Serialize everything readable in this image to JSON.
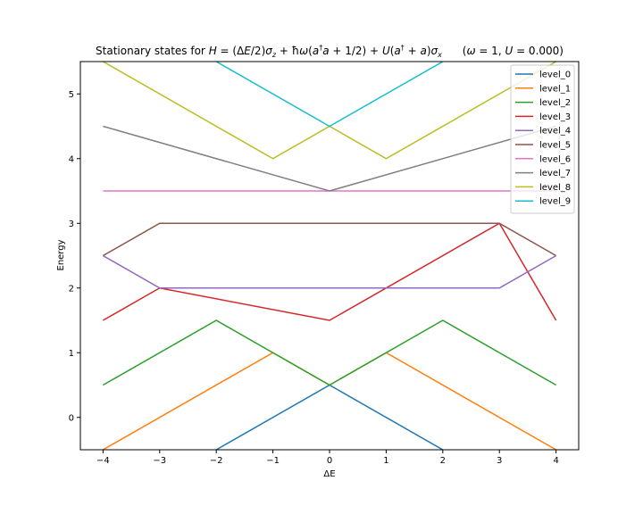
{
  "chart_data": {
    "type": "line",
    "title": "Stationary states for H = (ΔE/2)σ_z + ħω(a†a + 1/2) + U(a† + a)σ_x      (ω = 1, U = 0.000)",
    "xlabel": "ΔE",
    "ylabel": "Energy",
    "xlim": [
      -4.4,
      4.4
    ],
    "ylim": [
      -0.5,
      5.5
    ],
    "x_ticks": [
      -4,
      -3,
      -2,
      -1,
      0,
      1,
      2,
      3,
      4
    ],
    "y_ticks": [
      0,
      1,
      2,
      3,
      4,
      5
    ],
    "grid": false,
    "legend_position": "top-right",
    "series": [
      {
        "name": "level_0",
        "color": "#1f77b4",
        "x": [
          -2,
          0,
          2
        ],
        "y": [
          -0.5,
          0.5,
          -0.5
        ]
      },
      {
        "name": "level_1",
        "color": "#ff7f0e",
        "x": [
          -4,
          -1,
          0,
          1,
          4
        ],
        "y": [
          -0.5,
          1.0,
          0.5,
          1.0,
          -0.5
        ]
      },
      {
        "name": "level_2",
        "color": "#2ca02c",
        "x": [
          -4,
          -2,
          0,
          2,
          4
        ],
        "y": [
          0.5,
          1.5,
          0.5,
          1.5,
          0.5
        ]
      },
      {
        "name": "level_3",
        "color": "#d62728",
        "x": [
          -4,
          -3,
          0,
          3,
          4
        ],
        "y": [
          1.5,
          2.0,
          1.5,
          3.0,
          1.5
        ]
      },
      {
        "name": "level_4",
        "color": "#9467bd",
        "x": [
          -4,
          -3,
          -1,
          1,
          3,
          4
        ],
        "y": [
          2.5,
          2.0,
          2.0,
          2.0,
          2.0,
          2.5
        ]
      },
      {
        "name": "level_5",
        "color": "#8c564b",
        "x": [
          -4,
          -3,
          -1,
          1,
          3,
          4
        ],
        "y": [
          2.5,
          3.0,
          3.0,
          3.0,
          3.0,
          2.5
        ]
      },
      {
        "name": "level_6",
        "color": "#e377c2",
        "x": [
          -4,
          -2,
          0,
          2,
          4
        ],
        "y": [
          3.5,
          3.5,
          3.5,
          3.5,
          3.5
        ]
      },
      {
        "name": "level_7",
        "color": "#7f7f7f",
        "x": [
          -4,
          0,
          4
        ],
        "y": [
          4.5,
          3.5,
          4.5
        ]
      },
      {
        "name": "level_8",
        "color": "#bcbd22",
        "x": [
          -4,
          -1,
          0,
          1,
          4
        ],
        "y": [
          5.5,
          4.0,
          4.5,
          4.0,
          5.5
        ]
      },
      {
        "name": "level_9",
        "color": "#17becf",
        "x": [
          -2,
          0,
          2
        ],
        "y": [
          5.5,
          4.5,
          5.5
        ]
      }
    ]
  }
}
